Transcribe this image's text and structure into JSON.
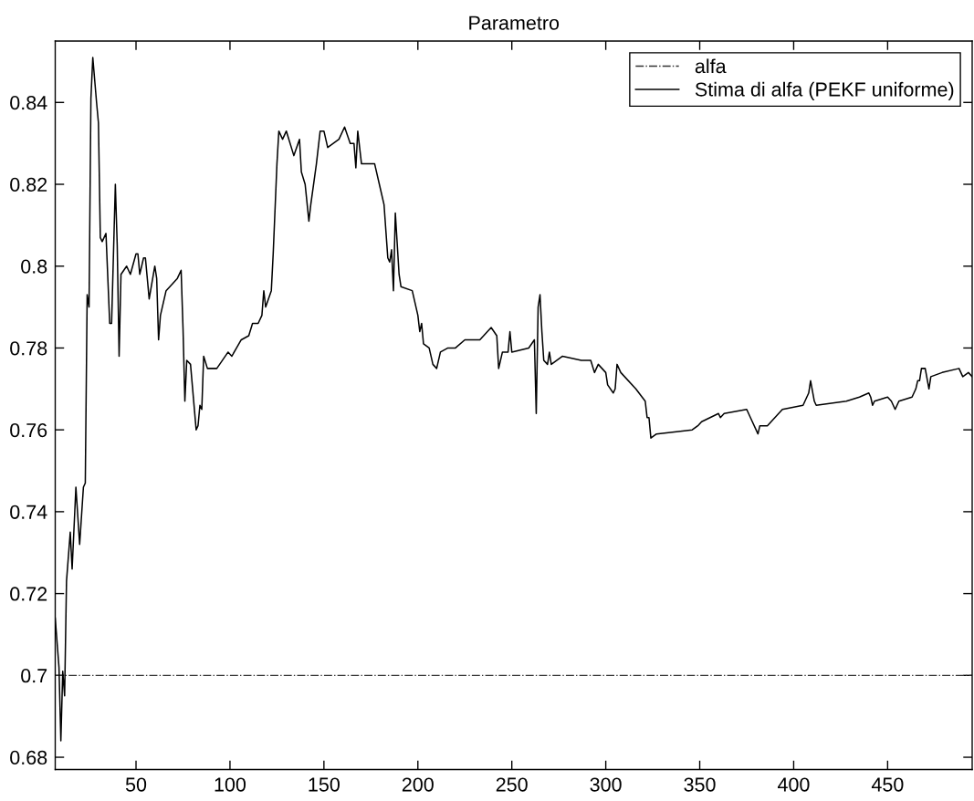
{
  "chart_data": {
    "type": "line",
    "title": "Parametro",
    "x": [
      7,
      9,
      10,
      11,
      12,
      13,
      15,
      16,
      18,
      20,
      22,
      23,
      24,
      25,
      26,
      27,
      29,
      30,
      31,
      32,
      34,
      36,
      37,
      39,
      40,
      41,
      42,
      45,
      47,
      50,
      51,
      52,
      54,
      55,
      57,
      60,
      61,
      62,
      63,
      66,
      72,
      74,
      75,
      76,
      77,
      79,
      82,
      83,
      84,
      85,
      86,
      88,
      93,
      99,
      101,
      106,
      110,
      112,
      115,
      117,
      118,
      119,
      122,
      123,
      125,
      126,
      128,
      130,
      134,
      137,
      138,
      140,
      142,
      143,
      146,
      148,
      150,
      152,
      158,
      161,
      164,
      166,
      167,
      168,
      170,
      177,
      180,
      182,
      184,
      185,
      186,
      187,
      188,
      190,
      191,
      197,
      200,
      201,
      202,
      203,
      206,
      208,
      210,
      212,
      216,
      220,
      225,
      233,
      239,
      242,
      243,
      245,
      248,
      249,
      250,
      259,
      262,
      263,
      264,
      265,
      266,
      267,
      269,
      270,
      271,
      277,
      287,
      292,
      294,
      296,
      300,
      301,
      304,
      305,
      306,
      308,
      316,
      321,
      322,
      323,
      324,
      327,
      346,
      349,
      351,
      360,
      361,
      363,
      375,
      377,
      381,
      382,
      386,
      394,
      405,
      408,
      409,
      411,
      412,
      428,
      435,
      440,
      441,
      442,
      443,
      450,
      452,
      454,
      456,
      463,
      465,
      466,
      467,
      468,
      470,
      472,
      473,
      479,
      488,
      490,
      493,
      495
    ],
    "series": [
      {
        "name": "Stima di alfa (PEKF uniforme)",
        "color": "#000000",
        "line_style": "solid",
        "values": [
          0.714,
          0.702,
          0.684,
          0.701,
          0.695,
          0.723,
          0.735,
          0.726,
          0.746,
          0.732,
          0.746,
          0.747,
          0.793,
          0.79,
          0.841,
          0.851,
          0.84,
          0.835,
          0.807,
          0.806,
          0.808,
          0.786,
          0.786,
          0.82,
          0.805,
          0.778,
          0.798,
          0.8,
          0.798,
          0.803,
          0.803,
          0.798,
          0.802,
          0.802,
          0.792,
          0.8,
          0.797,
          0.782,
          0.788,
          0.794,
          0.797,
          0.799,
          0.785,
          0.767,
          0.777,
          0.776,
          0.76,
          0.761,
          0.766,
          0.765,
          0.778,
          0.775,
          0.775,
          0.779,
          0.778,
          0.782,
          0.783,
          0.786,
          0.786,
          0.788,
          0.794,
          0.79,
          0.794,
          0.803,
          0.825,
          0.833,
          0.831,
          0.833,
          0.827,
          0.831,
          0.823,
          0.82,
          0.811,
          0.815,
          0.825,
          0.833,
          0.833,
          0.829,
          0.831,
          0.834,
          0.83,
          0.83,
          0.824,
          0.833,
          0.825,
          0.825,
          0.819,
          0.815,
          0.802,
          0.801,
          0.804,
          0.794,
          0.813,
          0.798,
          0.795,
          0.794,
          0.788,
          0.784,
          0.786,
          0.781,
          0.78,
          0.776,
          0.775,
          0.779,
          0.78,
          0.78,
          0.782,
          0.782,
          0.785,
          0.783,
          0.775,
          0.779,
          0.779,
          0.784,
          0.779,
          0.78,
          0.782,
          0.764,
          0.79,
          0.793,
          0.784,
          0.777,
          0.776,
          0.779,
          0.776,
          0.778,
          0.777,
          0.777,
          0.774,
          0.776,
          0.774,
          0.771,
          0.769,
          0.77,
          0.776,
          0.774,
          0.77,
          0.767,
          0.763,
          0.763,
          0.758,
          0.759,
          0.76,
          0.761,
          0.762,
          0.764,
          0.763,
          0.764,
          0.765,
          0.763,
          0.759,
          0.761,
          0.761,
          0.765,
          0.766,
          0.769,
          0.772,
          0.767,
          0.766,
          0.767,
          0.768,
          0.769,
          0.768,
          0.766,
          0.767,
          0.768,
          0.767,
          0.765,
          0.767,
          0.768,
          0.77,
          0.772,
          0.772,
          0.775,
          0.775,
          0.77,
          0.773,
          0.774,
          0.775,
          0.773,
          0.774,
          0.773
        ]
      }
    ],
    "ref_lines": [
      {
        "axis": "y",
        "value": 0.7,
        "label": "alfa",
        "color": "#333333",
        "line_style": "dashdot"
      }
    ],
    "xlim": [
      7,
      495
    ],
    "ylim": [
      0.677,
      0.855
    ],
    "xticks": [
      50,
      100,
      150,
      200,
      250,
      300,
      350,
      400,
      450
    ],
    "yticks": [
      0.68,
      0.7,
      0.72,
      0.74,
      0.76,
      0.78,
      0.8,
      0.82,
      0.84
    ],
    "legend": "top right"
  }
}
